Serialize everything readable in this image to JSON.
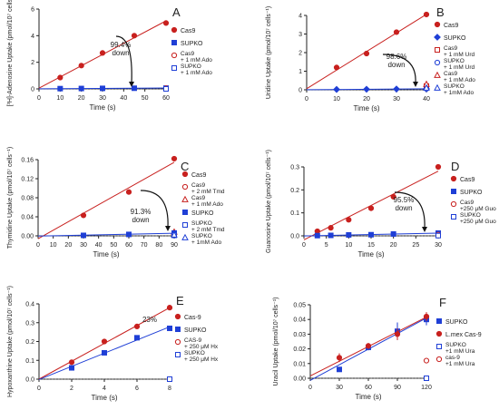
{
  "colors": {
    "red": "#c8201e",
    "blue": "#1f3fd6",
    "axis": "#222222"
  },
  "chart_data": [
    {
      "type": "scatter",
      "panel_label": "A",
      "xlabel": "Time (s)",
      "ylabel": "[³H]-Adenosine Uptake (pmol/10⁷ cells⁻¹)",
      "xlim": [
        0,
        60
      ],
      "ylim": [
        0,
        6
      ],
      "xticks": [
        0,
        10,
        20,
        30,
        40,
        50,
        60
      ],
      "yticks": [
        0,
        2,
        4,
        6
      ],
      "series": [
        {
          "name": "Cas9",
          "color": "red",
          "marker": "circle",
          "filled": true,
          "line": true,
          "points": [
            [
              10,
              0.85
            ],
            [
              20,
              1.75
            ],
            [
              30,
              2.7
            ],
            [
              45,
              4.0
            ],
            [
              60,
              4.95
            ]
          ]
        },
        {
          "name": "SUPKO",
          "color": "blue",
          "marker": "square",
          "filled": true,
          "line": true,
          "points": [
            [
              10,
              0.02
            ],
            [
              20,
              0.03
            ],
            [
              30,
              0.04
            ],
            [
              45,
              0.05
            ],
            [
              60,
              0.06
            ]
          ]
        },
        {
          "name": "Cas9 + 1 mM Ado",
          "color": "red",
          "marker": "circle",
          "filled": false,
          "line": false,
          "points": [
            [
              60,
              0.05
            ]
          ]
        },
        {
          "name": "SUPKO + 1 mM Ado",
          "color": "blue",
          "marker": "square",
          "filled": false,
          "line": false,
          "points": [
            [
              60,
              0.0
            ]
          ]
        }
      ],
      "annotations": [
        "99.4%",
        "down"
      ]
    },
    {
      "type": "scatter",
      "panel_label": "B",
      "xlabel": "Time (s)",
      "ylabel": "Uridine Uptake (pmol/10⁷ cells⁻¹)",
      "xlim": [
        0,
        40
      ],
      "ylim": [
        0,
        4
      ],
      "xticks": [
        0,
        10,
        20,
        30,
        40
      ],
      "yticks": [
        0,
        1,
        2,
        3,
        4
      ],
      "series": [
        {
          "name": "Cas9",
          "color": "red",
          "marker": "circle",
          "filled": true,
          "line": true,
          "points": [
            [
              10,
              1.2
            ],
            [
              20,
              1.95
            ],
            [
              30,
              3.1
            ],
            [
              40,
              4.05
            ]
          ]
        },
        {
          "name": "SUPKO",
          "color": "blue",
          "marker": "diamond",
          "filled": true,
          "line": true,
          "points": [
            [
              10,
              0.02
            ],
            [
              20,
              0.03
            ],
            [
              30,
              0.04
            ],
            [
              40,
              0.05
            ]
          ]
        },
        {
          "name": "Cas9 + 1 mM Urd",
          "color": "red",
          "marker": "square",
          "filled": false,
          "line": false,
          "points": [
            [
              40,
              0.2
            ]
          ]
        },
        {
          "name": "SUPKO + 1 mM Urd",
          "color": "blue",
          "marker": "circle",
          "filled": false,
          "line": false,
          "points": [
            [
              40,
              0.05
            ]
          ]
        },
        {
          "name": "Cas9 + 1 mM Ado",
          "color": "red",
          "marker": "triangle",
          "filled": false,
          "line": false,
          "points": [
            [
              40,
              0.3
            ]
          ]
        },
        {
          "name": "SUPKO + 1mM Ado",
          "color": "blue",
          "marker": "triangle",
          "filled": false,
          "line": false,
          "points": [
            [
              40,
              0.1
            ]
          ]
        }
      ],
      "annotations": [
        "98.6%",
        "down"
      ]
    },
    {
      "type": "scatter",
      "panel_label": "C",
      "xlabel": "Time (s)",
      "ylabel": "Thymidine Uptake (pmol/10⁷ cells⁻¹)",
      "xlim": [
        0,
        90
      ],
      "ylim": [
        0,
        0.16
      ],
      "xticks": [
        0,
        10,
        20,
        30,
        40,
        50,
        60,
        70,
        80,
        90
      ],
      "yticks": [
        0.0,
        0.04,
        0.08,
        0.12,
        0.16
      ],
      "series": [
        {
          "name": "Cas9",
          "color": "red",
          "marker": "circle",
          "filled": true,
          "line": true,
          "points": [
            [
              30,
              0.043
            ],
            [
              60,
              0.092
            ],
            [
              90,
              0.162
            ]
          ]
        },
        {
          "name": "Cas9 + 2 mM Tmd",
          "color": "red",
          "marker": "circle",
          "filled": false,
          "line": false,
          "points": [
            [
              90,
              0.004
            ]
          ]
        },
        {
          "name": "Cas9 + 1 mM Ado",
          "color": "red",
          "marker": "triangle",
          "filled": false,
          "line": false,
          "points": [
            [
              90,
              0.008
            ]
          ]
        },
        {
          "name": "SUPKO",
          "color": "blue",
          "marker": "square",
          "filled": true,
          "line": true,
          "points": [
            [
              30,
              0.001
            ],
            [
              60,
              0.003
            ],
            [
              90,
              0.006
            ]
          ]
        },
        {
          "name": "SUPKO + 2 mM Tmd",
          "color": "blue",
          "marker": "square",
          "filled": false,
          "line": false,
          "points": [
            [
              90,
              0.001
            ]
          ]
        },
        {
          "name": "SUPKO + 1mM Ado",
          "color": "blue",
          "marker": "triangle",
          "filled": false,
          "line": false,
          "points": [
            [
              90,
              0.002
            ]
          ]
        }
      ],
      "annotations": [
        "91.3%",
        "down"
      ]
    },
    {
      "type": "scatter",
      "panel_label": "D",
      "xlabel": "Time (s)",
      "ylabel": "Guanosine Uptake (pmol/10⁷ cells⁻¹)",
      "xlim": [
        0,
        30
      ],
      "ylim": [
        0,
        0.3
      ],
      "xticks": [
        0,
        5,
        10,
        15,
        20,
        25,
        30
      ],
      "yticks": [
        0.0,
        0.1,
        0.2,
        0.3
      ],
      "series": [
        {
          "name": "Cas9",
          "color": "red",
          "marker": "circle",
          "filled": true,
          "line": true,
          "points": [
            [
              3,
              0.02
            ],
            [
              6,
              0.035
            ],
            [
              10,
              0.07
            ],
            [
              15,
              0.12
            ],
            [
              20,
              0.17
            ],
            [
              30,
              0.3
            ]
          ]
        },
        {
          "name": "SUPKO",
          "color": "blue",
          "marker": "square",
          "filled": true,
          "line": true,
          "points": [
            [
              3,
              0.001
            ],
            [
              6,
              0.002
            ],
            [
              10,
              0.004
            ],
            [
              15,
              0.005
            ],
            [
              20,
              0.008
            ],
            [
              30,
              0.012
            ]
          ]
        },
        {
          "name": "Cas9 +250 μM Guo",
          "color": "red",
          "marker": "circle",
          "filled": false,
          "line": false,
          "points": [
            [
              30,
              0.005
            ]
          ]
        },
        {
          "name": "SUPKO +250 μM Guo",
          "color": "blue",
          "marker": "square",
          "filled": false,
          "line": false,
          "points": [
            [
              30,
              0.001
            ]
          ]
        }
      ],
      "annotations": [
        "95.5%",
        "down"
      ]
    },
    {
      "type": "scatter",
      "panel_label": "E",
      "xlabel": "Time (s)",
      "ylabel": "Hypoxanthine Uptake (pmol/10⁷ cells⁻¹)",
      "xlim": [
        0,
        8
      ],
      "ylim": [
        0,
        0.4
      ],
      "xticks": [
        0,
        2,
        4,
        6,
        8
      ],
      "yticks": [
        0.0,
        0.1,
        0.2,
        0.3,
        0.4
      ],
      "series": [
        {
          "name": "Cas-9",
          "color": "red",
          "marker": "circle",
          "filled": true,
          "line": true,
          "points": [
            [
              2,
              0.09
            ],
            [
              4,
              0.2
            ],
            [
              6,
              0.28
            ],
            [
              8,
              0.38
            ]
          ]
        },
        {
          "name": "SUPKO",
          "color": "blue",
          "marker": "square",
          "filled": true,
          "line": true,
          "points": [
            [
              2,
              0.06
            ],
            [
              4,
              0.14
            ],
            [
              6,
              0.22
            ],
            [
              8,
              0.27
            ]
          ]
        },
        {
          "name": "CAS-9 + 250 μM Hx",
          "color": "red",
          "marker": "circle",
          "filled": false,
          "line": false,
          "points": [
            [
              8,
              0.0
            ]
          ]
        },
        {
          "name": "SUPKO + 250 μM Hx",
          "color": "blue",
          "marker": "square",
          "filled": false,
          "line": false,
          "points": [
            [
              8,
              0.0
            ]
          ]
        }
      ],
      "annotations": [
        "23%"
      ]
    },
    {
      "type": "scatter",
      "panel_label": "F",
      "xlabel": "Time (s)",
      "ylabel": "Uracil Uptake (pmol/10⁷ cells⁻¹)",
      "xlim": [
        0,
        120
      ],
      "ylim": [
        0,
        0.05
      ],
      "xticks": [
        0,
        30,
        60,
        90,
        120
      ],
      "yticks": [
        0.0,
        0.01,
        0.02,
        0.03,
        0.04,
        0.05
      ],
      "series": [
        {
          "name": "SUPKO",
          "color": "blue",
          "marker": "square",
          "filled": true,
          "line": true,
          "points": [
            [
              30,
              0.006
            ],
            [
              60,
              0.021
            ],
            [
              90,
              0.032
            ],
            [
              120,
              0.04
            ]
          ],
          "errors": [
            0.001,
            0.002,
            0.006,
            0.004
          ]
        },
        {
          "name": "L.mex Cas-9",
          "color": "red",
          "marker": "circle",
          "filled": true,
          "line": true,
          "points": [
            [
              30,
              0.014
            ],
            [
              60,
              0.022
            ],
            [
              90,
              0.03
            ],
            [
              120,
              0.042
            ]
          ],
          "errors": [
            0.003,
            0.002,
            0.004,
            0.003
          ]
        },
        {
          "name": "SUPKO +1 mM Ura",
          "color": "blue",
          "marker": "square",
          "filled": false,
          "line": false,
          "points": [
            [
              120,
              0.0
            ]
          ]
        },
        {
          "name": "cas-9 +1 mM Ura",
          "color": "red",
          "marker": "circle",
          "filled": false,
          "line": false,
          "points": [
            [
              120,
              0.012
            ]
          ]
        }
      ],
      "annotations": []
    }
  ]
}
